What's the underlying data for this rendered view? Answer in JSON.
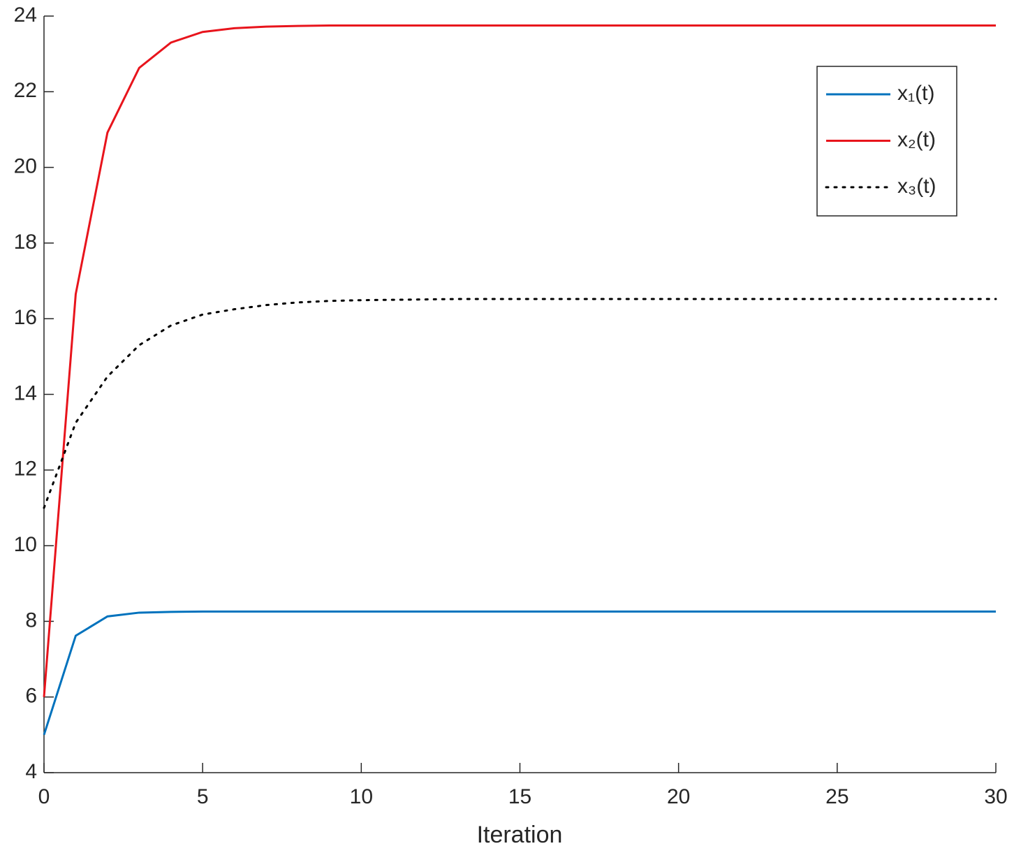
{
  "chart_data": {
    "type": "line",
    "xlabel": "Iteration",
    "x": [
      0,
      1,
      2,
      3,
      4,
      5,
      6,
      7,
      8,
      9,
      10,
      11,
      12,
      13,
      14,
      15,
      16,
      17,
      18,
      19,
      20,
      21,
      22,
      23,
      24,
      25,
      26,
      27,
      28,
      29,
      30
    ],
    "series": [
      {
        "name": "x₁(t)",
        "color": "#0072bd",
        "style": "solid",
        "values": [
          5,
          7.62,
          8.13,
          8.23,
          8.25,
          8.26,
          8.26,
          8.26,
          8.26,
          8.26,
          8.26,
          8.26,
          8.26,
          8.26,
          8.26,
          8.26,
          8.26,
          8.26,
          8.26,
          8.26,
          8.26,
          8.26,
          8.26,
          8.26,
          8.26,
          8.26,
          8.26,
          8.26,
          8.26,
          8.26,
          8.26
        ]
      },
      {
        "name": "x₂(t)",
        "color": "#e8141c",
        "style": "solid",
        "values": [
          6,
          16.65,
          20.92,
          22.63,
          23.3,
          23.58,
          23.68,
          23.72,
          23.74,
          23.75,
          23.75,
          23.75,
          23.75,
          23.75,
          23.75,
          23.75,
          23.75,
          23.75,
          23.75,
          23.75,
          23.75,
          23.75,
          23.75,
          23.75,
          23.75,
          23.75,
          23.75,
          23.75,
          23.75,
          23.75,
          23.75
        ]
      },
      {
        "name": "x₃(t)",
        "color": "#000000",
        "style": "dotted",
        "values": [
          11,
          13.25,
          14.47,
          15.3,
          15.82,
          16.11,
          16.25,
          16.36,
          16.43,
          16.47,
          16.49,
          16.5,
          16.51,
          16.52,
          16.52,
          16.52,
          16.52,
          16.52,
          16.52,
          16.52,
          16.52,
          16.52,
          16.52,
          16.52,
          16.52,
          16.52,
          16.52,
          16.52,
          16.52,
          16.52,
          16.52
        ]
      }
    ],
    "xlim": [
      0,
      30
    ],
    "xticks": [
      0,
      5,
      10,
      15,
      20,
      25,
      30
    ],
    "ylim": [
      4,
      24
    ],
    "yticks": [
      4,
      6,
      8,
      10,
      12,
      14,
      16,
      18,
      20,
      22,
      24
    ],
    "grid": false,
    "legend": "northeast"
  }
}
